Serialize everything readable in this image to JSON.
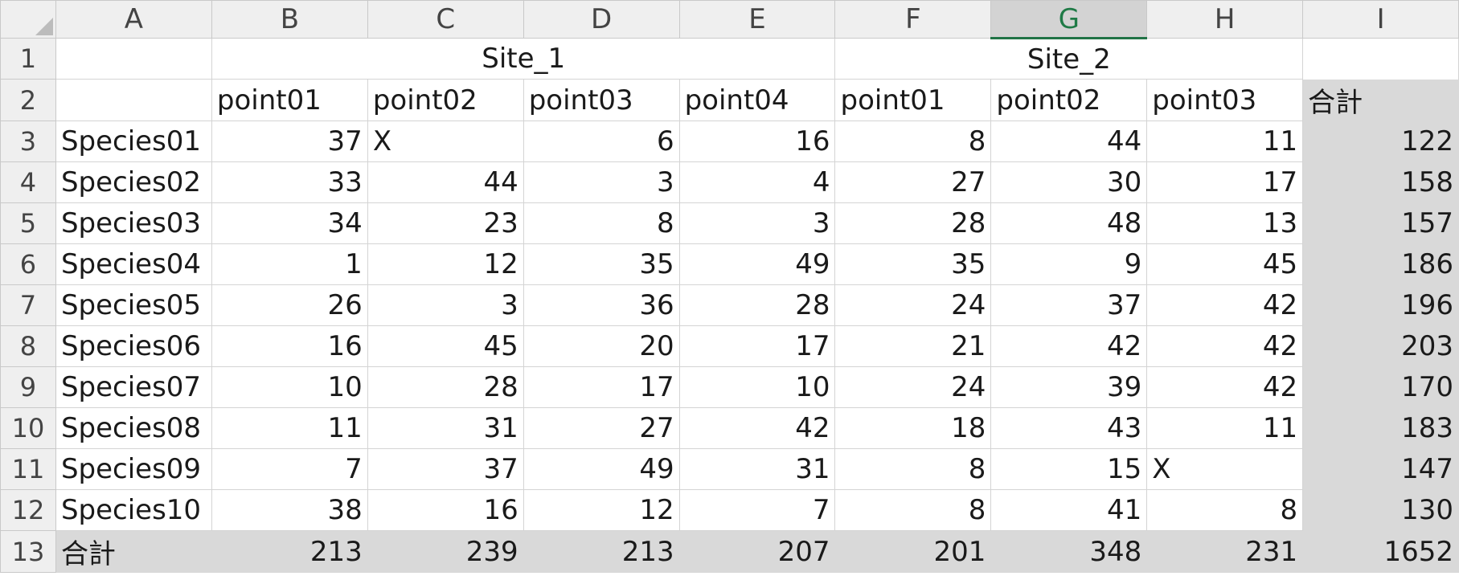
{
  "sheet": {
    "columns": [
      "A",
      "B",
      "C",
      "D",
      "E",
      "F",
      "G",
      "H",
      "I"
    ],
    "selected_column": "G",
    "row_numbers": [
      "1",
      "2",
      "3",
      "4",
      "5",
      "6",
      "7",
      "8",
      "9",
      "10",
      "11",
      "12",
      "13"
    ],
    "site1_label": "Site_1",
    "site2_label": "Site_2",
    "points_header": [
      "point01",
      "point02",
      "point03",
      "point04",
      "point01",
      "point02",
      "point03"
    ],
    "total_label": "合計",
    "species_rows": [
      {
        "name": "Species01",
        "values": [
          "37",
          "X",
          "6",
          "16",
          "8",
          "44",
          "11"
        ],
        "total": "122"
      },
      {
        "name": "Species02",
        "values": [
          "33",
          "44",
          "3",
          "4",
          "27",
          "30",
          "17"
        ],
        "total": "158"
      },
      {
        "name": "Species03",
        "values": [
          "34",
          "23",
          "8",
          "3",
          "28",
          "48",
          "13"
        ],
        "total": "157"
      },
      {
        "name": "Species04",
        "values": [
          "1",
          "12",
          "35",
          "49",
          "35",
          "9",
          "45"
        ],
        "total": "186"
      },
      {
        "name": "Species05",
        "values": [
          "26",
          "3",
          "36",
          "28",
          "24",
          "37",
          "42"
        ],
        "total": "196"
      },
      {
        "name": "Species06",
        "values": [
          "16",
          "45",
          "20",
          "17",
          "21",
          "42",
          "42"
        ],
        "total": "203"
      },
      {
        "name": "Species07",
        "values": [
          "10",
          "28",
          "17",
          "10",
          "24",
          "39",
          "42"
        ],
        "total": "170"
      },
      {
        "name": "Species08",
        "values": [
          "11",
          "31",
          "27",
          "42",
          "18",
          "43",
          "11"
        ],
        "total": "183"
      },
      {
        "name": "Species09",
        "values": [
          "7",
          "37",
          "49",
          "31",
          "8",
          "15",
          "X"
        ],
        "total": "147"
      },
      {
        "name": "Species10",
        "values": [
          "38",
          "16",
          "12",
          "7",
          "8",
          "41",
          "8"
        ],
        "total": "130"
      }
    ],
    "column_totals": [
      "213",
      "239",
      "213",
      "207",
      "201",
      "348",
      "231"
    ],
    "grand_total": "1652",
    "colors": {
      "header_bg": "#efefef",
      "selected_header_bg": "#d3d3d3",
      "selected_accent": "#217346",
      "total_fill": "#d9d9d9",
      "gridline": "#d4d4d4"
    }
  }
}
